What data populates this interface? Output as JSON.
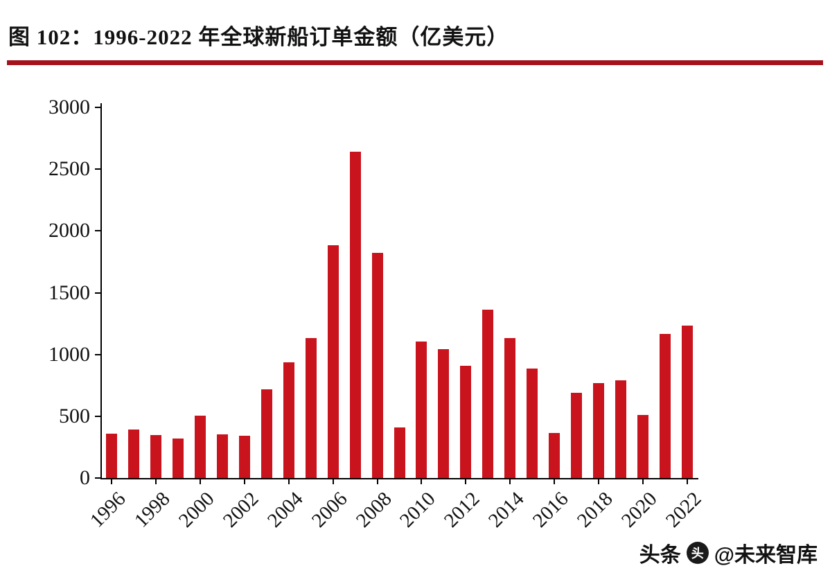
{
  "chart_data": {
    "type": "bar",
    "title": "图 102：1996-2022 年全球新船订单金额（亿美元）",
    "xlabel": "",
    "ylabel": "",
    "categories": [
      "1996",
      "1997",
      "1998",
      "1999",
      "2000",
      "2001",
      "2002",
      "2003",
      "2004",
      "2005",
      "2006",
      "2007",
      "2008",
      "2009",
      "2010",
      "2011",
      "2012",
      "2013",
      "2014",
      "2015",
      "2016",
      "2017",
      "2018",
      "2019",
      "2020",
      "2021",
      "2022"
    ],
    "values": [
      360,
      390,
      345,
      320,
      505,
      355,
      340,
      715,
      935,
      1135,
      1885,
      2640,
      1820,
      410,
      1105,
      1045,
      910,
      1360,
      1135,
      885,
      365,
      690,
      770,
      790,
      510,
      1165,
      1235
    ],
    "xtick_labels": [
      "1996",
      "1998",
      "2000",
      "2002",
      "2004",
      "2006",
      "2008",
      "2010",
      "2012",
      "2014",
      "2016",
      "2018",
      "2020",
      "2022"
    ],
    "yticks": [
      0,
      500,
      1000,
      1500,
      2000,
      2500,
      3000
    ],
    "ylim": [
      0,
      3000
    ],
    "grid": false,
    "legend_position": "none",
    "bar_color": "#C9141E",
    "title_rule_color": "#A5121B",
    "axis_color": "#000000"
  },
  "watermark": {
    "source": "头条",
    "handle": "@未来智库"
  }
}
